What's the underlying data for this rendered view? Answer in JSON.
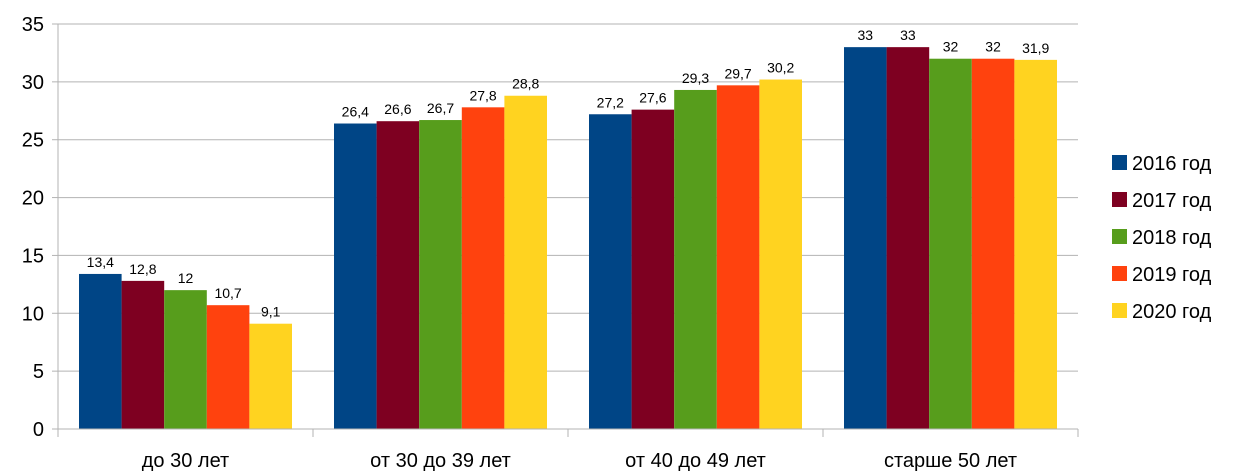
{
  "chart_data": {
    "type": "bar",
    "categories": [
      "до 30 лет",
      "от 30 до 39 лет",
      "от 40 до 49 лет",
      "старше 50 лет"
    ],
    "series": [
      {
        "name": "2016 год",
        "values": [
          13.4,
          26.4,
          27.2,
          33
        ],
        "labels": [
          "13,4",
          "26,4",
          "27,2",
          "33"
        ],
        "color": "#004586"
      },
      {
        "name": "2017 год",
        "values": [
          12.8,
          26.6,
          27.6,
          33
        ],
        "labels": [
          "12,8",
          "26,6",
          "27,6",
          "33"
        ],
        "color": "#7e0021"
      },
      {
        "name": "2018 год",
        "values": [
          12,
          26.7,
          29.3,
          32
        ],
        "labels": [
          "12",
          "26,7",
          "29,3",
          "32"
        ],
        "color": "#579d1c"
      },
      {
        "name": "2019 год",
        "values": [
          10.7,
          27.8,
          29.7,
          32
        ],
        "labels": [
          "10,7",
          "27,8",
          "29,7",
          "32"
        ],
        "color": "#ff420e"
      },
      {
        "name": "2020 год",
        "values": [
          9.1,
          28.8,
          30.2,
          31.9
        ],
        "labels": [
          "9,1",
          "28,8",
          "30,2",
          "31,9"
        ],
        "color": "#ffd320"
      }
    ],
    "ylim": [
      0,
      35
    ],
    "yticks": [
      0,
      5,
      10,
      15,
      20,
      25,
      30,
      35
    ],
    "grid": true,
    "legend_position": "right",
    "title": "",
    "xlabel": "",
    "ylabel": ""
  }
}
